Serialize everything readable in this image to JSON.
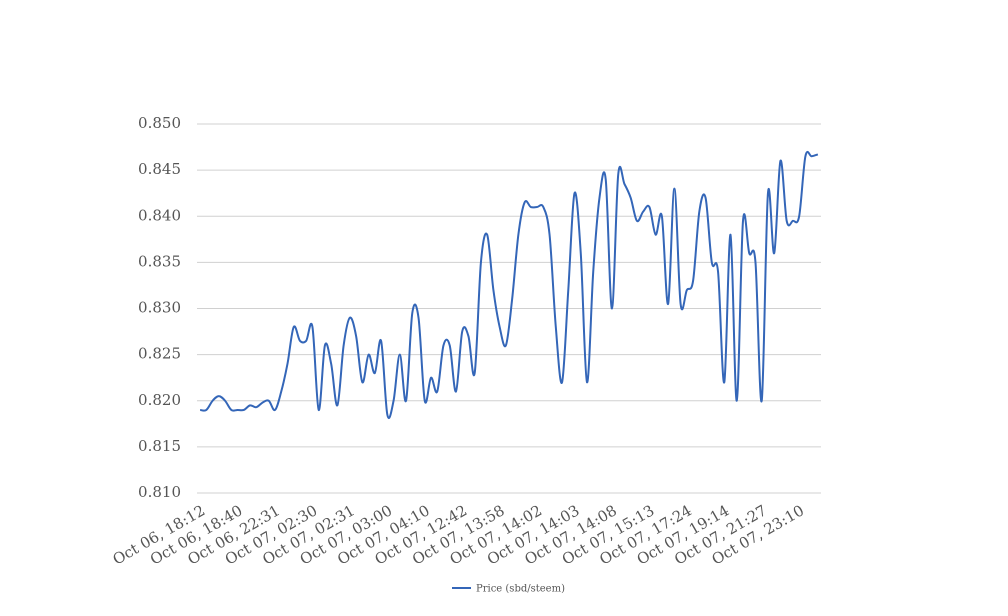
{
  "chart_data": {
    "type": "line",
    "categories": [
      "Oct 06, 18:12",
      null,
      null,
      null,
      null,
      null,
      "Oct 06, 18:40",
      null,
      null,
      null,
      null,
      null,
      "Oct 06, 22:31",
      null,
      null,
      null,
      null,
      null,
      "Oct 07, 02:30",
      null,
      null,
      null,
      null,
      null,
      "Oct 07, 02:31",
      null,
      null,
      null,
      null,
      null,
      "Oct 07, 03:00",
      null,
      null,
      null,
      null,
      null,
      "Oct 07, 04:10",
      null,
      null,
      null,
      null,
      null,
      "Oct 07, 12:42",
      null,
      null,
      null,
      null,
      null,
      "Oct 07, 13:58",
      null,
      null,
      null,
      null,
      null,
      "Oct 07, 14:02",
      null,
      null,
      null,
      null,
      null,
      "Oct 07, 14:03",
      null,
      null,
      null,
      null,
      null,
      "Oct 07, 14:08",
      null,
      null,
      null,
      null,
      null,
      "Oct 07, 15:13",
      null,
      null,
      null,
      null,
      null,
      "Oct 07, 17:24",
      null,
      null,
      null,
      null,
      null,
      "Oct 07, 19:14",
      null,
      null,
      null,
      null,
      null,
      "Oct 07, 21:27",
      null,
      null,
      null,
      null,
      null,
      "Oct 07, 23:10",
      null,
      null,
      null
    ],
    "series": [
      {
        "name": "Price (sbd/steem)",
        "color": "#3466b8",
        "values": [
          0.819,
          0.819,
          0.82,
          0.8205,
          0.82,
          0.819,
          0.819,
          0.819,
          0.8195,
          0.8193,
          0.8198,
          0.82,
          0.819,
          0.821,
          0.824,
          0.828,
          0.8265,
          0.8265,
          0.828,
          0.819,
          0.826,
          0.824,
          0.8195,
          0.826,
          0.829,
          0.827,
          0.822,
          0.825,
          0.823,
          0.8265,
          0.8185,
          0.82,
          0.825,
          0.82,
          0.8295,
          0.829,
          0.82,
          0.8225,
          0.821,
          0.826,
          0.826,
          0.821,
          0.8275,
          0.827,
          0.823,
          0.835,
          0.838,
          0.832,
          0.828,
          0.826,
          0.831,
          0.838,
          0.8415,
          0.841,
          0.841,
          0.841,
          0.838,
          0.828,
          0.822,
          0.832,
          0.8425,
          0.836,
          0.822,
          0.834,
          0.842,
          0.844,
          0.83,
          0.8445,
          0.8435,
          0.842,
          0.8395,
          0.8405,
          0.841,
          0.838,
          0.84,
          0.8305,
          0.843,
          0.8305,
          0.832,
          0.833,
          0.8405,
          0.842,
          0.835,
          0.834,
          0.822,
          0.838,
          0.82,
          0.8395,
          0.836,
          0.835,
          0.82,
          0.8425,
          0.836,
          0.846,
          0.8395,
          0.8395,
          0.84,
          0.8465,
          0.8465,
          0.8467
        ]
      }
    ],
    "ylim": [
      0.81,
      0.85
    ],
    "yticks": [
      {
        "value": 0.81,
        "label": "0.810"
      },
      {
        "value": 0.815,
        "label": "0.815"
      },
      {
        "value": 0.82,
        "label": "0.820"
      },
      {
        "value": 0.825,
        "label": "0.825"
      },
      {
        "value": 0.83,
        "label": "0.830"
      },
      {
        "value": 0.835,
        "label": "0.835"
      },
      {
        "value": 0.84,
        "label": "0.840"
      },
      {
        "value": 0.845,
        "label": "0.845"
      },
      {
        "value": 0.85,
        "label": "0.850"
      }
    ],
    "grid": true,
    "legend": "bottom"
  }
}
